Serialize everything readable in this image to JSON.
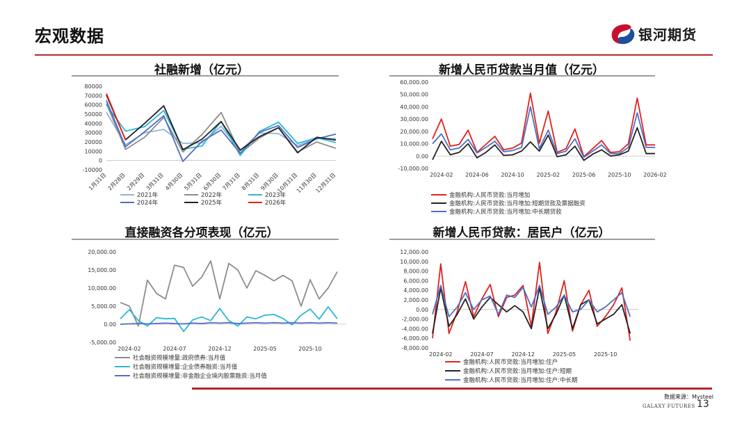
{
  "page": {
    "title": "宏观数据",
    "brand": "银河期货",
    "source": "数据来源：Mysteel",
    "brand_en": "GALAXY FUTURES",
    "page_number": "13"
  },
  "colors": {
    "accent": "#b8262b"
  },
  "chart_data": [
    {
      "id": "c1",
      "type": "line",
      "title": "社融新增（亿元）",
      "categories": [
        "1月31日",
        "2月28日",
        "2月29日",
        "3月31日",
        "4月30日",
        "5月31日",
        "6月30日",
        "7月31日",
        "8月31日",
        "9月30日",
        "10月31日",
        "11月30日",
        "12月31日"
      ],
      "yticks": [
        -10000,
        0,
        10000,
        20000,
        30000,
        40000,
        50000,
        60000,
        70000,
        80000
      ],
      "yticks_fmt": [
        "-10000",
        "0",
        "10000",
        "20000",
        "30000",
        "40000",
        "50000",
        "60000",
        "70000",
        "80000"
      ],
      "ylim": [
        -10000,
        80000
      ],
      "series": [
        {
          "name": "2021年",
          "color": "#8fb4d9",
          "values": [
            52000,
            17000,
            30000,
            33500,
            18500,
            19000,
            37000,
            10500,
            29500,
            29000,
            16000,
            24000,
            23500
          ]
        },
        {
          "name": "2022年",
          "color": "#8c8c8c",
          "values": [
            61500,
            12000,
            25000,
            46500,
            9200,
            28000,
            51800,
            7600,
            24300,
            35300,
            9100,
            19900,
            13100
          ]
        },
        {
          "name": "2023年",
          "color": "#2ab7d4",
          "values": [
            59800,
            31600,
            36500,
            53800,
            12200,
            15600,
            42200,
            5400,
            31200,
            41300,
            18400,
            24500,
            19300
          ]
        },
        {
          "name": "2024年",
          "color": "#4e6fc4",
          "values": [
            64700,
            14900,
            31000,
            48300,
            -1000,
            20700,
            32900,
            7700,
            30300,
            37600,
            14000,
            23400,
            28500
          ]
        },
        {
          "name": "2025年",
          "color": "#222222",
          "values": [
            70600,
            22300,
            40000,
            58900,
            11600,
            22900,
            42000,
            11300,
            25700,
            35300,
            8200,
            25000,
            22000
          ]
        },
        {
          "name": "2026年",
          "color": "#e0211c",
          "values": [
            72200,
            22000,
            null,
            null,
            null,
            null,
            null,
            null,
            null,
            null,
            null,
            null,
            null
          ]
        }
      ]
    },
    {
      "id": "c2",
      "type": "line",
      "title": "新增人民币贷款当月值（亿元）",
      "categories": [
        "2024-01",
        "2024-02",
        "2024-03",
        "2024-04",
        "2024-05",
        "2024-06",
        "2024-07",
        "2024-08",
        "2024-09",
        "2024-10",
        "2024-11",
        "2024-12",
        "2025-01",
        "2025-02",
        "2025-03",
        "2025-04",
        "2025-05",
        "2025-06",
        "2025-07",
        "2025-08",
        "2025-09",
        "2025-10",
        "2025-11",
        "2025-12",
        "2026-01",
        "2026-02"
      ],
      "xticks": [
        1,
        5,
        9,
        13,
        17,
        21,
        25
      ],
      "xtick_labels": [
        "2024-02",
        "2024-06",
        "2024-10",
        "2025-02",
        "2025-06",
        "2025-10",
        "2026-02"
      ],
      "yticks": [
        -10000,
        0,
        10000,
        20000,
        30000,
        40000,
        50000,
        60000
      ],
      "yticks_fmt": [
        "-10,000.00",
        "0.00",
        "10,000.00",
        "20,000.00",
        "30,000.00",
        "40,000.00",
        "50,000.00",
        "60,000.00"
      ],
      "ylim": [
        -10000,
        60000
      ],
      "series": [
        {
          "name": "金融机构:人民币贷款:当月增加",
          "color": "#e0211c",
          "values": [
            14000,
            30000,
            8000,
            9500,
            21000,
            3000,
            9500,
            16000,
            5000,
            6500,
            10500,
            51000,
            10500,
            36500,
            3000,
            6000,
            22000,
            -500,
            6000,
            12500,
            3000,
            3500,
            10000,
            47000,
            9000,
            9000
          ]
        },
        {
          "name": "金融机构:人民币贷款:当月增加:短期贷款及票据融资",
          "color": "#222222",
          "values": [
            -3000,
            12000,
            1000,
            3000,
            10000,
            -1500,
            3000,
            9000,
            500,
            1000,
            4000,
            11500,
            4000,
            17000,
            -500,
            1000,
            8000,
            -3500,
            1500,
            5000,
            0,
            1000,
            4000,
            23000,
            2000,
            2000
          ]
        },
        {
          "name": "金融机构:人民币贷款:当月增加:中长期贷款",
          "color": "#4e6fc4",
          "values": [
            10000,
            18000,
            5000,
            6500,
            13500,
            2500,
            7000,
            12000,
            3500,
            4500,
            7000,
            40000,
            6000,
            21000,
            2000,
            4000,
            14000,
            -1000,
            4000,
            9000,
            2000,
            2000,
            7000,
            35000,
            7000,
            7000
          ]
        }
      ]
    },
    {
      "id": "c3",
      "type": "line",
      "title": "直接融资各分项表现（亿元）",
      "categories": [
        "2024-01",
        "2024-02",
        "2024-03",
        "2024-04",
        "2024-05",
        "2024-06",
        "2024-07",
        "2024-08",
        "2024-09",
        "2024-10",
        "2024-11",
        "2024-12",
        "2025-01",
        "2025-02",
        "2025-03",
        "2025-04",
        "2025-05",
        "2025-06",
        "2025-07",
        "2025-08",
        "2025-09",
        "2025-10",
        "2025-11",
        "2025-12",
        "2026-01",
        "2026-02"
      ],
      "xticks": [
        1,
        6,
        11,
        16,
        21
      ],
      "xtick_labels": [
        "2024-02",
        "2024-07",
        "2024-12",
        "2025-05",
        "2025-10"
      ],
      "yticks": [
        -5000,
        0,
        5000,
        10000,
        15000,
        20000
      ],
      "yticks_fmt": [
        "-5,000.00",
        "0.00",
        "5,000.00",
        "10,000.00",
        "15,000.00",
        "20,000.00"
      ],
      "ylim": [
        -5000,
        20000
      ],
      "series": [
        {
          "name": "社会融资规模增量:政府债券:当月值",
          "color": "#8c8c8c",
          "values": [
            6000,
            5000,
            -500,
            12200,
            8500,
            7000,
            16300,
            15700,
            10500,
            13000,
            17500,
            7000,
            16800,
            15000,
            10000,
            14800,
            13500,
            12000,
            13500,
            12000,
            5000,
            12300,
            7000,
            10000,
            14500,
            null
          ]
        },
        {
          "name": "社会融资规模增量:企业债券融资:当月值",
          "color": "#2ab7d4",
          "values": [
            1500,
            4000,
            1000,
            -500,
            1800,
            1500,
            1600,
            -2000,
            1200,
            2000,
            1000,
            4300,
            1000,
            -500,
            2000,
            1500,
            2500,
            2700,
            1600,
            -200,
            2500,
            4200,
            1400,
            4800,
            1500,
            null
          ]
        },
        {
          "name": "社会融资规模增量:非金融企业境内股票融资:当月值",
          "color": "#4e6fc4",
          "values": [
            0,
            100,
            200,
            100,
            200,
            300,
            200,
            100,
            300,
            200,
            400,
            300,
            400,
            200,
            300,
            400,
            300,
            400,
            300,
            400,
            300,
            400,
            300,
            400,
            300,
            null
          ]
        }
      ]
    },
    {
      "id": "c4",
      "type": "line",
      "title": "新增人民币贷款：居民户（亿元）",
      "categories": [
        "2024-01",
        "2024-02",
        "2024-03",
        "2024-04",
        "2024-05",
        "2024-06",
        "2024-07",
        "2024-08",
        "2024-09",
        "2024-10",
        "2024-11",
        "2024-12",
        "2025-01",
        "2025-02",
        "2025-03",
        "2025-04",
        "2025-05",
        "2025-06",
        "2025-07",
        "2025-08",
        "2025-09",
        "2025-10",
        "2025-11",
        "2025-12",
        "2026-01",
        "2026-02"
      ],
      "xticks": [
        1,
        6,
        11,
        16,
        21
      ],
      "xtick_labels": [
        "2024-02",
        "2024-07",
        "2024-12",
        "2025-05",
        "2025-10"
      ],
      "yticks": [
        -8000,
        -6000,
        -4000,
        -2000,
        0,
        2000,
        4000,
        6000,
        8000,
        10000,
        12000
      ],
      "yticks_fmt": [
        "-8,000.00",
        "-6,000.00",
        "-4,000.00",
        "-2,000.00",
        "0.00",
        "2,000.00",
        "4,000.00",
        "6,000.00",
        "8,000.00",
        "10,000.00",
        "12,000.00"
      ],
      "ylim": [
        -8000,
        12000
      ],
      "series": [
        {
          "name": "金融机构:人民币贷款:当月增加:住户",
          "color": "#e0211c",
          "values": [
            -6000,
            9500,
            -5000,
            -500,
            5800,
            -1500,
            2200,
            5200,
            -1500,
            2500,
            3000,
            5000,
            -3500,
            9800,
            -5000,
            -500,
            6000,
            -4500,
            1000,
            4000,
            -3500,
            -1500,
            1000,
            4500,
            -6500,
            null
          ]
        },
        {
          "name": "金融机构:人民币贷款:当月增加:住户:短期",
          "color": "#222222",
          "values": [
            -5000,
            4500,
            -3500,
            -1000,
            2200,
            -2000,
            500,
            2500,
            1000,
            -500,
            800,
            -500,
            -4000,
            4500,
            -4000,
            -1000,
            3000,
            -4000,
            1000,
            2000,
            -3000,
            -2000,
            -1000,
            1000,
            -5000,
            null
          ]
        },
        {
          "name": "金融机构:人民币贷款:当月增加:住户:中长期",
          "color": "#4e6fc4",
          "values": [
            -1000,
            5000,
            -1500,
            500,
            3500,
            0,
            2000,
            2800,
            -1000,
            3000,
            2500,
            4600,
            500,
            5000,
            -1000,
            500,
            3000,
            -500,
            0,
            2000,
            -500,
            500,
            2000,
            3500,
            -1500,
            null
          ]
        }
      ]
    }
  ]
}
